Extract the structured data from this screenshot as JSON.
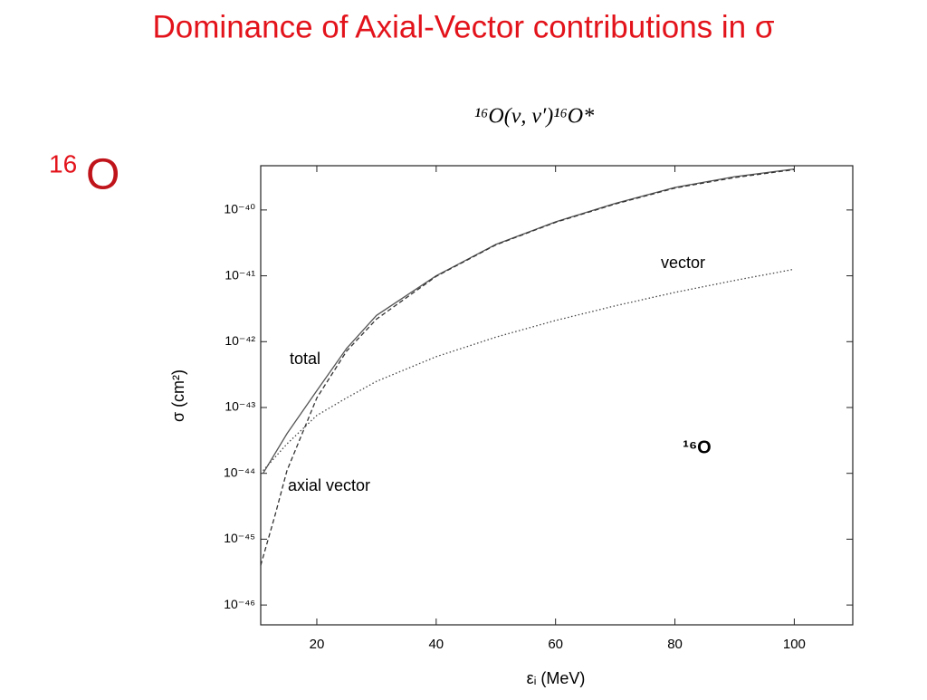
{
  "slide": {
    "title": "Dominance of Axial-Vector contributions in σ",
    "label_mass": "16",
    "label_element": "O"
  },
  "chart_data": {
    "type": "line",
    "title": "¹⁶O(ν, ν′)¹⁶O*",
    "x_label": "εᵢ (MeV)",
    "y_label": "σ (cm²)",
    "xlim": [
      10.6,
      109.8
    ],
    "xticks": [
      20,
      40,
      60,
      80,
      100
    ],
    "ylim": [
      5e-47,
      4.7e-40
    ],
    "log_y": true,
    "yticks": [
      {
        "value": 1e-46,
        "label": "10⁻⁴⁶"
      },
      {
        "value": 1e-45,
        "label": "10⁻⁴⁵"
      },
      {
        "value": 1e-44,
        "label": "10⁻⁴⁴"
      },
      {
        "value": 1e-43,
        "label": "10⁻⁴³"
      },
      {
        "value": 1e-42,
        "label": "10⁻⁴²"
      },
      {
        "value": 1e-41,
        "label": "10⁻⁴¹"
      },
      {
        "value": 1e-40,
        "label": "10⁻⁴⁰"
      }
    ],
    "series": [
      {
        "name": "total",
        "color": "#555555",
        "dash": "solid",
        "x": [
          11,
          15,
          20,
          25,
          30,
          40,
          50,
          60,
          70,
          80,
          90,
          100
        ],
        "values": [
          1e-44,
          4e-44,
          1.8e-43,
          7.9e-43,
          2.5e-42,
          1e-41,
          3e-41,
          6.6e-41,
          1.26e-40,
          2.2e-40,
          3.2e-40,
          4.2e-40
        ]
      },
      {
        "name": "vector",
        "color": "#444444",
        "dash": "dotted",
        "x": [
          11,
          15,
          20,
          25,
          30,
          40,
          50,
          60,
          70,
          80,
          90,
          100
        ],
        "values": [
          1.1e-44,
          2.8e-44,
          7.6e-44,
          1.4e-43,
          2.5e-43,
          5.9e-43,
          1.17e-42,
          2.1e-42,
          3.5e-42,
          5.6e-42,
          8.5e-42,
          1.26e-41
        ]
      },
      {
        "name": "axial vector",
        "color": "#333333",
        "dash": "dashed",
        "x": [
          10.6,
          13,
          15,
          20,
          25,
          30,
          40,
          50,
          60,
          70,
          80,
          90,
          100
        ],
        "values": [
          4e-46,
          2.3e-45,
          1.1e-44,
          1.4e-43,
          7.2e-43,
          2.2e-42,
          9.8e-42,
          2.95e-41,
          6.5e-41,
          1.23e-40,
          2.15e-40,
          3.1e-40,
          4.1e-40
        ]
      }
    ],
    "annotation": "¹⁶O"
  }
}
